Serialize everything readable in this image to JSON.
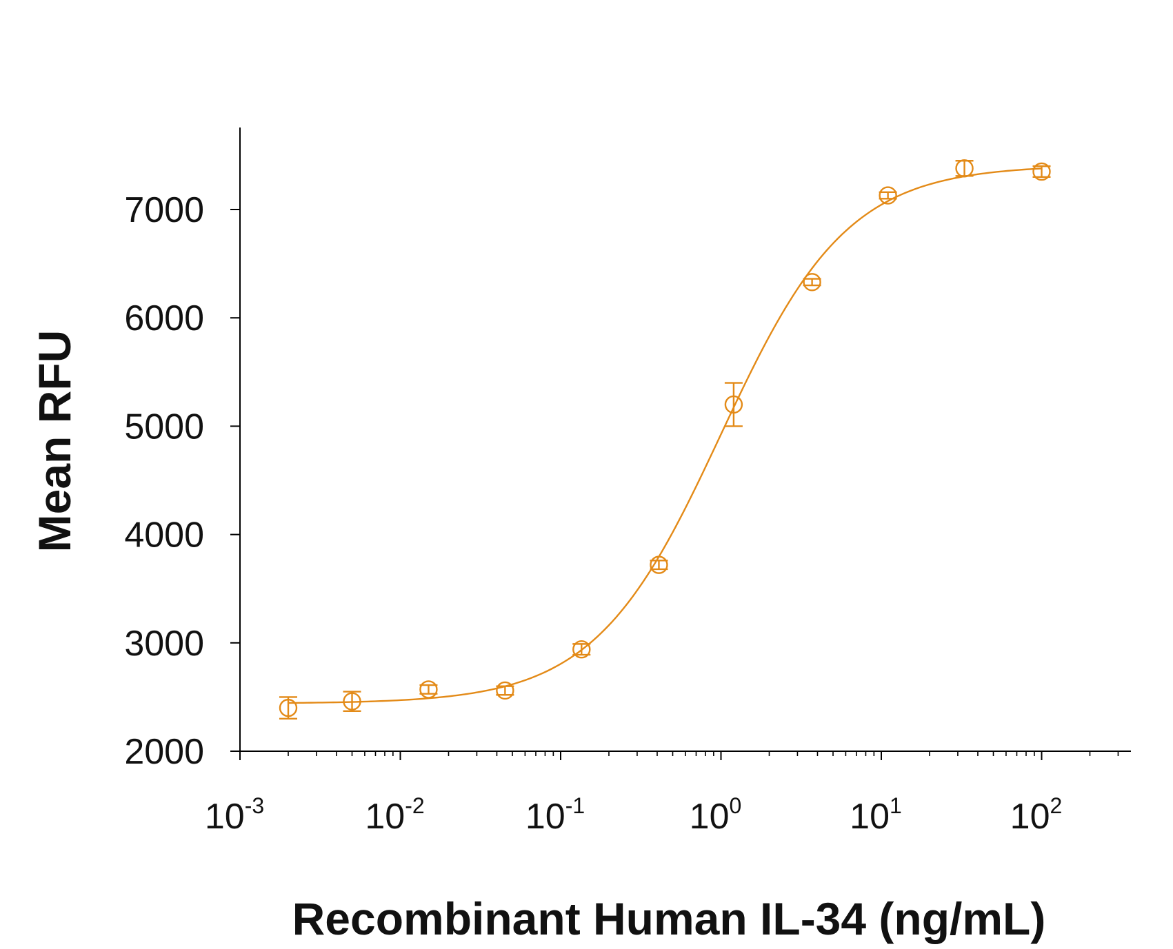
{
  "chart_data": {
    "type": "scatter",
    "title": "",
    "xlabel": "Recombinant Human IL-34 (ng/mL)",
    "ylabel": "Mean RFU",
    "x_scale": "log",
    "xlim": [
      0.001,
      300
    ],
    "ylim": [
      2000,
      7750
    ],
    "x_ticks": [
      {
        "value": 0.001,
        "base": "10",
        "exp": "-3"
      },
      {
        "value": 0.01,
        "base": "10",
        "exp": "-2"
      },
      {
        "value": 0.1,
        "base": "10",
        "exp": "-1"
      },
      {
        "value": 1,
        "base": "10",
        "exp": "0"
      },
      {
        "value": 10,
        "base": "10",
        "exp": "1"
      },
      {
        "value": 100,
        "base": "10",
        "exp": "2"
      }
    ],
    "y_ticks": [
      "2000",
      "3000",
      "4000",
      "5000",
      "6000",
      "7000"
    ],
    "grid": false,
    "color": "#E38A17",
    "series": [
      {
        "points": [
          {
            "x": 0.002,
            "y": 2400,
            "err": 100
          },
          {
            "x": 0.005,
            "y": 2460,
            "err": 90
          },
          {
            "x": 0.015,
            "y": 2570,
            "err": 40
          },
          {
            "x": 0.045,
            "y": 2560,
            "err": 40
          },
          {
            "x": 0.135,
            "y": 2940,
            "err": 50
          },
          {
            "x": 0.41,
            "y": 3720,
            "err": 40
          },
          {
            "x": 1.2,
            "y": 5200,
            "err": 200
          },
          {
            "x": 3.7,
            "y": 6330,
            "err": 30
          },
          {
            "x": 11,
            "y": 7130,
            "err": 30
          },
          {
            "x": 33,
            "y": 7380,
            "err": 70
          },
          {
            "x": 100,
            "y": 7350,
            "err": 50
          }
        ],
        "fit": {
          "model": "4PL",
          "bottom": 2440,
          "top": 7410,
          "ec50": 1.0,
          "hill": 1.1
        }
      }
    ]
  }
}
